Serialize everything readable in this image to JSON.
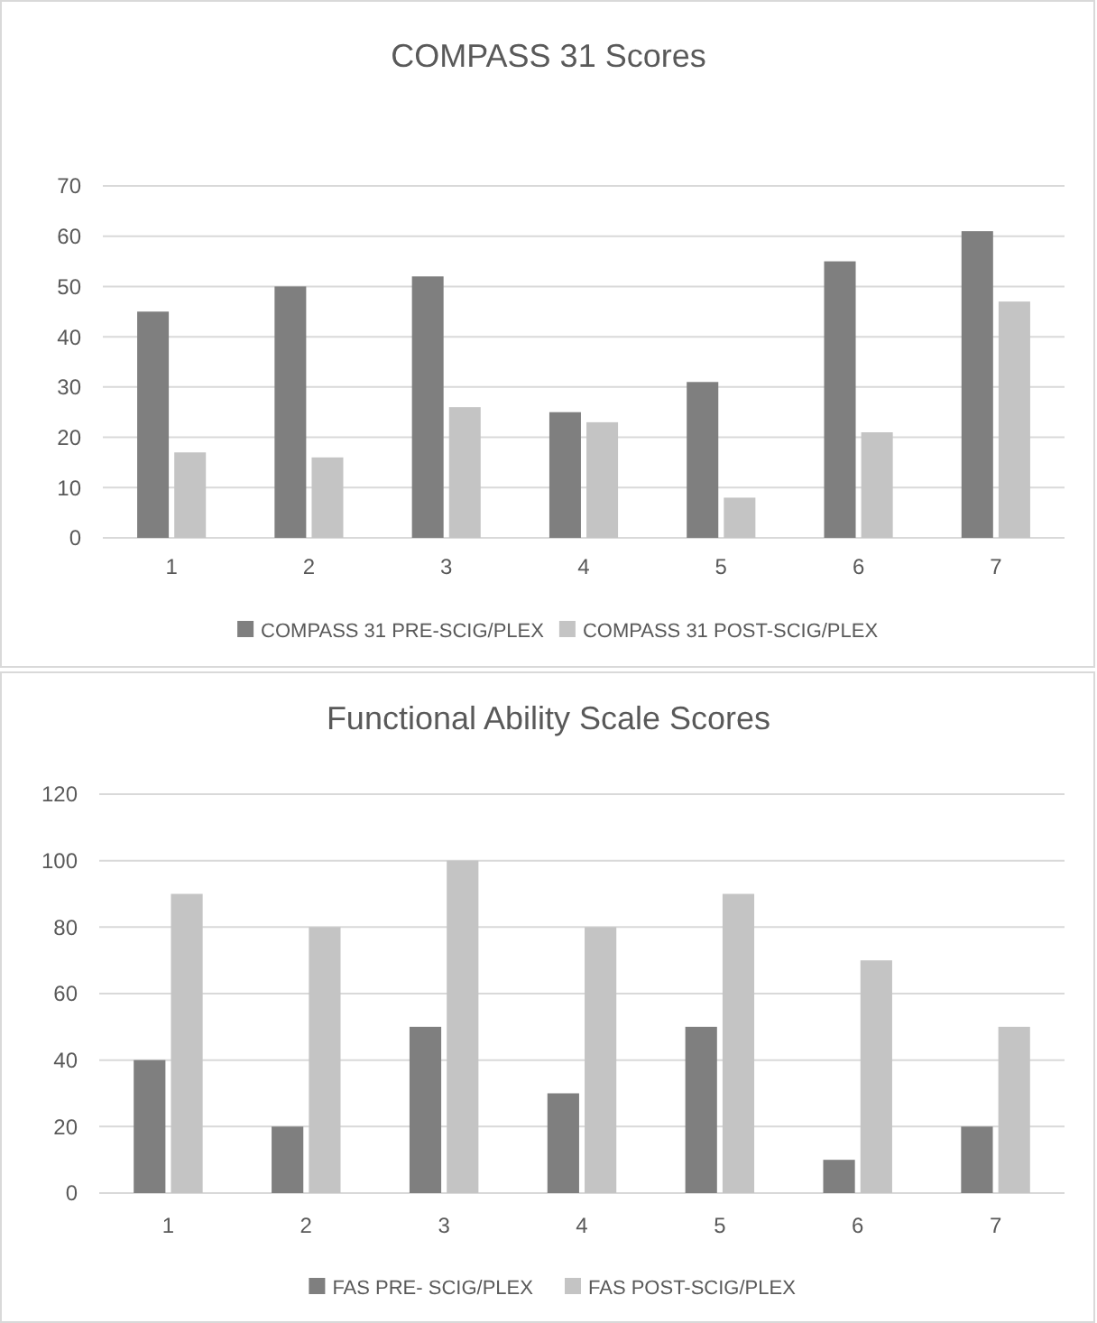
{
  "chart_data": [
    {
      "type": "bar",
      "title": "COMPASS 31 Scores",
      "categories": [
        "1",
        "2",
        "3",
        "4",
        "5",
        "6",
        "7"
      ],
      "series": [
        {
          "name": "COMPASS 31 PRE-SCIG/PLEX",
          "color": "#7f7f7f",
          "values": [
            45,
            50,
            52,
            25,
            31,
            55,
            61
          ]
        },
        {
          "name": "COMPASS 31 POST-SCIG/PLEX",
          "color": "#c4c4c4",
          "values": [
            17,
            16,
            26,
            23,
            8,
            21,
            47
          ]
        }
      ],
      "ylim": [
        0,
        70
      ],
      "yticks": [
        0,
        10,
        20,
        30,
        40,
        50,
        60,
        70
      ],
      "grid": "y",
      "legend": "bottom"
    },
    {
      "type": "bar",
      "title": "Functional Ability Scale Scores",
      "categories": [
        "1",
        "2",
        "3",
        "4",
        "5",
        "6",
        "7"
      ],
      "series": [
        {
          "name": "FAS PRE- SCIG/PLEX",
          "color": "#7f7f7f",
          "values": [
            40,
            20,
            50,
            30,
            50,
            10,
            20
          ]
        },
        {
          "name": "FAS POST-SCIG/PLEX",
          "color": "#c4c4c4",
          "values": [
            90,
            80,
            100,
            80,
            90,
            70,
            50
          ]
        }
      ],
      "ylim": [
        0,
        120
      ],
      "yticks": [
        0,
        20,
        40,
        60,
        80,
        100,
        120
      ],
      "grid": "y",
      "legend": "bottom"
    }
  ]
}
